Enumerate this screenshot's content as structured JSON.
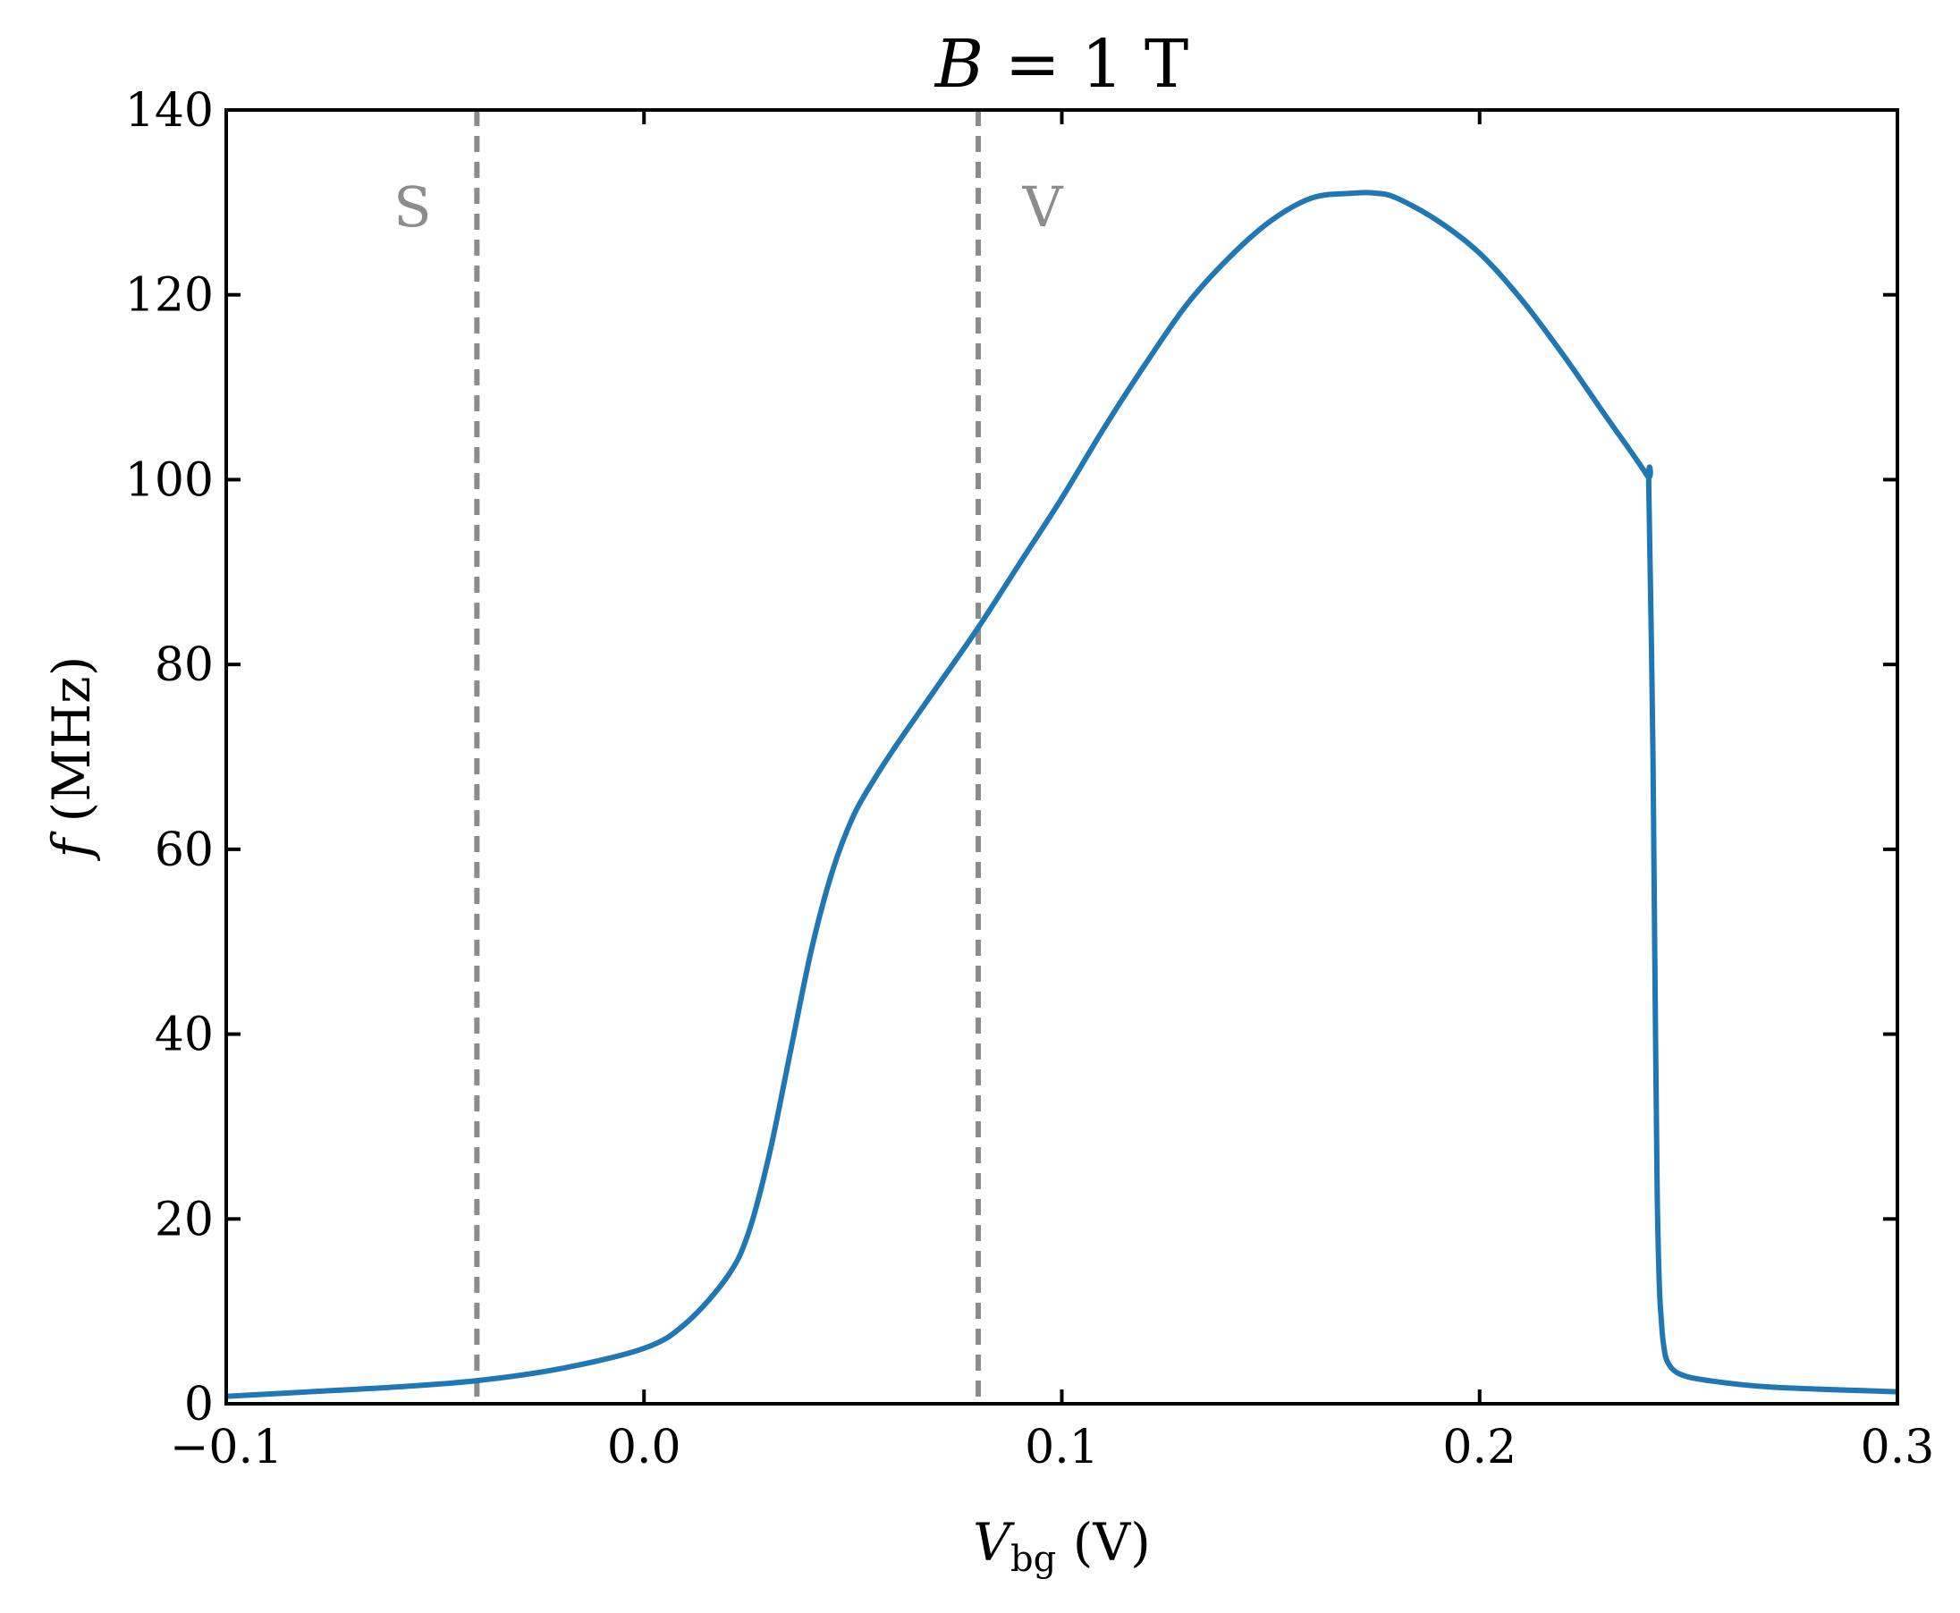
{
  "chart_data": {
    "type": "line",
    "title": "B = 1 T",
    "title_parts": {
      "var": "B",
      "eq": " = 1 T"
    },
    "xlabel": "V_bg (V)",
    "xlabel_parts": {
      "var": "V",
      "sub": "bg",
      "unit": " (V)"
    },
    "ylabel": "f (MHz)",
    "ylabel_parts": {
      "var": "f",
      "unit": " (MHz)"
    },
    "xlim": [
      -0.1,
      0.3
    ],
    "ylim": [
      0,
      140
    ],
    "xticks": [
      -0.1,
      0.0,
      0.1,
      0.2,
      0.3
    ],
    "xtick_labels": [
      "−0.1",
      "0.0",
      "0.1",
      "0.2",
      "0.3"
    ],
    "yticks": [
      0,
      20,
      40,
      60,
      80,
      100,
      120,
      140
    ],
    "ytick_labels": [
      "0",
      "20",
      "40",
      "60",
      "80",
      "100",
      "120",
      "140"
    ],
    "grid": false,
    "series": [
      {
        "color": "#1f77b4",
        "x": [
          -0.1,
          -0.08,
          -0.06,
          -0.04,
          -0.02,
          0.0,
          0.01,
          0.02,
          0.025,
          0.03,
          0.035,
          0.04,
          0.045,
          0.05,
          0.055,
          0.06,
          0.07,
          0.08,
          0.09,
          0.1,
          0.11,
          0.12,
          0.13,
          0.14,
          0.15,
          0.16,
          0.17,
          0.175,
          0.18,
          0.19,
          0.2,
          0.21,
          0.22,
          0.23,
          0.24,
          0.2405,
          0.2415,
          0.242,
          0.2425,
          0.243,
          0.2435,
          0.244,
          0.245,
          0.248,
          0.255,
          0.27,
          0.3
        ],
        "y": [
          0.8,
          1.3,
          1.8,
          2.5,
          3.8,
          6.0,
          8.7,
          13.8,
          18.5,
          27.0,
          38.0,
          49.0,
          57.5,
          63.5,
          67.5,
          71.0,
          77.5,
          84.0,
          91.0,
          98.0,
          105.5,
          112.5,
          119.0,
          124.0,
          128.0,
          130.5,
          131.0,
          131.0,
          130.5,
          128.0,
          124.5,
          119.5,
          113.5,
          107.0,
          100.5,
          99.0,
          70.0,
          45.0,
          23.0,
          13.0,
          9.0,
          6.5,
          4.5,
          3.2,
          2.5,
          1.8,
          1.3
        ]
      }
    ],
    "vlines": [
      {
        "x": -0.04,
        "label": "S",
        "label_side": "left",
        "color": "#8c8c8c",
        "style": "dashed"
      },
      {
        "x": 0.08,
        "label": "V",
        "label_side": "right",
        "color": "#8c8c8c",
        "style": "dashed"
      }
    ],
    "line_color": "#1f77b4",
    "vline_color": "#8c8c8c"
  }
}
